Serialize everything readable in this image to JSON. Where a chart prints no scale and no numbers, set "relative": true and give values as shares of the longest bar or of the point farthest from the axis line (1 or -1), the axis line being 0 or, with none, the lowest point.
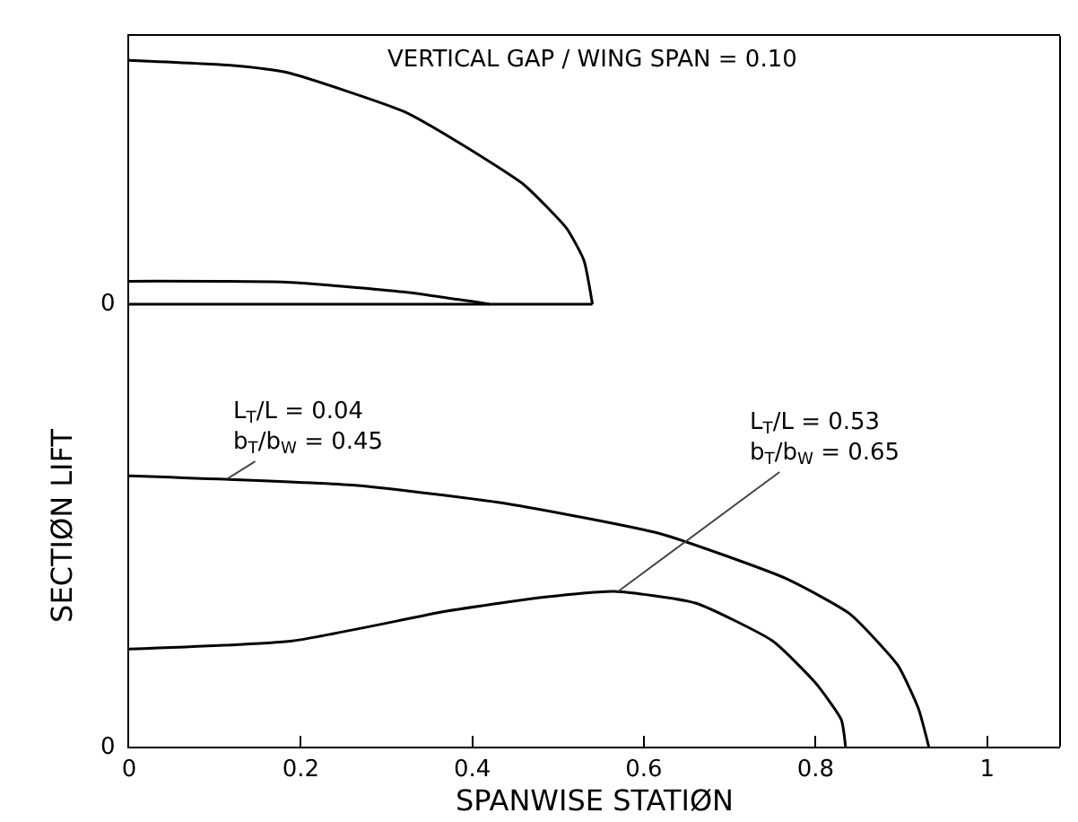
{
  "chart_data": [
    {
      "type": "line",
      "title": "VERTICAL GAP / WING SPAN = 0.10",
      "relative": true,
      "xlim": [
        0,
        1.085
      ],
      "xticks": [
        0,
        0.2,
        0.4,
        0.6,
        0.8,
        1
      ],
      "tick_labels": false,
      "grid": false,
      "line_style": "solid",
      "annotations": [
        "0"
      ],
      "series": [
        {
          "color": "#000000",
          "x": [
            0,
            0.115,
            0.184,
            0.32,
            0.39,
            0.46,
            0.51,
            0.53,
            0.54
          ],
          "values": [
            1,
            0.98,
            0.95,
            0.79,
            0.65,
            0.49,
            0.31,
            0.18,
            0
          ]
        },
        {
          "color": "#000000",
          "x": [
            0,
            0.184,
            0.32,
            0.42
          ],
          "values": [
            0.094,
            0.09,
            0.05,
            0
          ]
        }
      ]
    },
    {
      "type": "line",
      "xlabel": "SPANWISE STATIØN",
      "ylabel": "SECTIØN LIFT",
      "relative": true,
      "xlim": [
        0,
        1.085
      ],
      "xticks": [
        0,
        0.2,
        0.4,
        0.6,
        0.8,
        1
      ],
      "tick_labels": "x",
      "grid": false,
      "line_style": "solid",
      "annotations": [
        "0",
        {
          "text": "L$_{T}$/L = 0.04\nb$_{T}$/b$_{W}$ = 0.45",
          "x": 0.115,
          "y": 0.99
        },
        {
          "text": "L$_{T}$/L = 0.53\nb$_{T}$/b$_{W}$ = 0.65",
          "x": 0.57,
          "y": 0.573
        }
      ],
      "series": [
        {
          "color": "#000000",
          "x": [
            0,
            0.263,
            0.44,
            0.62,
            0.766,
            0.84,
            0.896,
            0.92,
            0.932
          ],
          "values": [
            1,
            0.965,
            0.897,
            0.785,
            0.62,
            0.49,
            0.3,
            0.14,
            0
          ]
        },
        {
          "color": "#000000",
          "x": [
            0,
            0.19,
            0.37,
            0.478,
            0.565,
            0.66,
            0.75,
            0.8,
            0.83,
            0.835
          ],
          "values": [
            0.36,
            0.39,
            0.5,
            0.55,
            0.573,
            0.53,
            0.39,
            0.235,
            0.1,
            0
          ]
        }
      ]
    }
  ]
}
